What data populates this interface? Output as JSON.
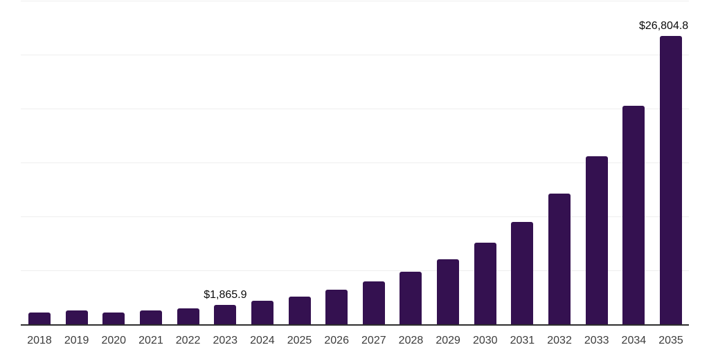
{
  "chart_data": {
    "type": "bar",
    "title": "",
    "xlabel": "",
    "ylabel": "",
    "categories": [
      "2018",
      "2019",
      "2020",
      "2021",
      "2022",
      "2023",
      "2024",
      "2025",
      "2026",
      "2027",
      "2028",
      "2029",
      "2030",
      "2031",
      "2032",
      "2033",
      "2034",
      "2035"
    ],
    "values": [
      1185,
      1370,
      1135,
      1320,
      1570,
      1865.9,
      2240,
      2600,
      3240,
      4050,
      4940,
      6075,
      7610,
      9570,
      12190,
      15670,
      20290,
      26804.8
    ],
    "ylim": [
      0,
      30000
    ],
    "gridline_step": 5000,
    "grid": "horizontal-only",
    "legend": "none",
    "y_tick_labels_visible": false,
    "data_labels": [
      {
        "index": 5,
        "text": "$1,865.9"
      },
      {
        "index": 17,
        "text": "$26,804.8"
      }
    ],
    "styles": {
      "bar_color": "#341150",
      "axis_line_color": "#2d2d2d",
      "gridline_color": "#eeeeee",
      "tick_label_color": "#3c3c3c",
      "data_label_color": "#0a0a0a",
      "background": "#ffffff"
    }
  }
}
